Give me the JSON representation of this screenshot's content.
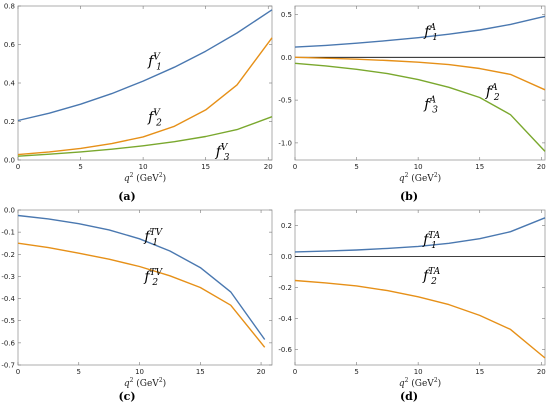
{
  "colors": {
    "blue": "#4a78b0",
    "orange": "#e69018",
    "green": "#7aa82e",
    "frame": "#999999"
  },
  "chart_data": [
    {
      "type": "line",
      "panel": "a",
      "caption": "(a)",
      "xlabel_main": "q",
      "xlabel_sup": "2",
      "xlabel_units": " (GeV",
      "xlabel_units_sup": "2",
      "xlabel_units_end": ")",
      "xlim": [
        0,
        20.3
      ],
      "ylim": [
        0,
        0.8
      ],
      "xticks": [
        0,
        5,
        10,
        15,
        20
      ],
      "yticks": [
        0.0,
        0.2,
        0.4,
        0.6,
        0.8
      ],
      "ytick_labels": [
        "0.0",
        "0.2",
        "0.4",
        "0.6",
        "0.8"
      ],
      "zero_line": false,
      "series": [
        {
          "name": "f",
          "sup": "V",
          "sub": "1",
          "color_key": "blue",
          "label_at": [
            10.4,
            0.49
          ],
          "x": [
            0,
            2.5,
            5,
            7.5,
            10,
            12.5,
            15,
            17.5,
            20.3
          ],
          "y": [
            0.205,
            0.243,
            0.29,
            0.345,
            0.41,
            0.482,
            0.565,
            0.66,
            0.78
          ]
        },
        {
          "name": "f",
          "sup": "V",
          "sub": "2",
          "color_key": "orange",
          "label_at": [
            10.4,
            0.2
          ],
          "x": [
            0,
            2.5,
            5,
            7.5,
            10,
            12.5,
            15,
            17.5,
            20.3
          ],
          "y": [
            0.028,
            0.042,
            0.06,
            0.085,
            0.12,
            0.175,
            0.26,
            0.39,
            0.635
          ]
        },
        {
          "name": "f",
          "sup": "V",
          "sub": "3",
          "color_key": "green",
          "label_at": [
            15.8,
            0.02
          ],
          "x": [
            0,
            2.5,
            5,
            7.5,
            10,
            12.5,
            15,
            17.5,
            20.3
          ],
          "y": [
            0.02,
            0.03,
            0.042,
            0.056,
            0.074,
            0.095,
            0.122,
            0.158,
            0.225
          ]
        }
      ]
    },
    {
      "type": "line",
      "panel": "b",
      "caption": "(b)",
      "xlabel_main": "q",
      "xlabel_sup": "2",
      "xlabel_units": " (GeV",
      "xlabel_units_sup": "2",
      "xlabel_units_end": ")",
      "xlim": [
        0,
        20.3
      ],
      "ylim": [
        -1.2,
        0.6
      ],
      "xticks": [
        0,
        5,
        10,
        15,
        20
      ],
      "yticks": [
        -1.0,
        -0.5,
        0.0,
        0.5
      ],
      "ytick_labels": [
        "-1.0",
        "-0.5",
        "0.0",
        "0.5"
      ],
      "zero_line": true,
      "series": [
        {
          "name": "f",
          "sup": "A",
          "sub": "1",
          "color_key": "blue",
          "label_at": [
            10.5,
            0.25
          ],
          "x": [
            0,
            2.5,
            5,
            7.5,
            10,
            12.5,
            15,
            17.5,
            20.3
          ],
          "y": [
            0.12,
            0.14,
            0.165,
            0.195,
            0.23,
            0.27,
            0.32,
            0.385,
            0.48
          ]
        },
        {
          "name": "f",
          "sup": "A",
          "sub": "2",
          "color_key": "orange",
          "label_at": [
            15.5,
            -0.45
          ],
          "x": [
            0,
            2.5,
            5,
            7.5,
            10,
            12.5,
            15,
            17.5,
            20.3
          ],
          "y": [
            0.0,
            -0.01,
            -0.022,
            -0.037,
            -0.057,
            -0.085,
            -0.13,
            -0.2,
            -0.38
          ]
        },
        {
          "name": "f",
          "sup": "A",
          "sub": "3",
          "color_key": "green",
          "label_at": [
            10.5,
            -0.6
          ],
          "x": [
            0,
            2.5,
            5,
            7.5,
            10,
            12.5,
            15,
            17.5,
            20.3
          ],
          "y": [
            -0.07,
            -0.1,
            -0.14,
            -0.19,
            -0.26,
            -0.35,
            -0.47,
            -0.67,
            -1.1
          ]
        }
      ]
    },
    {
      "type": "line",
      "panel": "c",
      "caption": "(c)",
      "xlabel_main": "q",
      "xlabel_sup": "2",
      "xlabel_units": " (GeV",
      "xlabel_units_sup": "2",
      "xlabel_units_end": ")",
      "xlim": [
        0,
        20.9
      ],
      "ylim": [
        -0.7,
        0.0
      ],
      "xticks": [
        0,
        5,
        10,
        15,
        20
      ],
      "yticks": [
        0.0,
        -0.1,
        -0.2,
        -0.3,
        -0.4,
        -0.5,
        -0.6,
        -0.7
      ],
      "ytick_labels": [
        "0.0",
        "-0.1",
        "-0.2",
        "-0.3",
        "-0.4",
        "-0.5",
        "-0.6",
        "-0.7"
      ],
      "zero_line": false,
      "series": [
        {
          "name": "f",
          "sup": "TV",
          "sub": "1",
          "color_key": "blue",
          "label_at": [
            10.4,
            -0.14
          ],
          "x": [
            0,
            2.5,
            5,
            7.5,
            10,
            12.5,
            15,
            17.5,
            20.3
          ],
          "y": [
            -0.025,
            -0.04,
            -0.062,
            -0.09,
            -0.13,
            -0.185,
            -0.26,
            -0.37,
            -0.585
          ]
        },
        {
          "name": "f",
          "sup": "TV",
          "sub": "2",
          "color_key": "orange",
          "label_at": [
            10.4,
            -0.32
          ],
          "x": [
            0,
            2.5,
            5,
            7.5,
            10,
            12.5,
            15,
            17.5,
            20.3
          ],
          "y": [
            -0.15,
            -0.17,
            -0.195,
            -0.222,
            -0.255,
            -0.297,
            -0.35,
            -0.43,
            -0.62
          ]
        }
      ]
    },
    {
      "type": "line",
      "panel": "d",
      "caption": "(d)",
      "xlabel_main": "q",
      "xlabel_sup": "2",
      "xlabel_units": " (GeV",
      "xlabel_units_sup": "2",
      "xlabel_units_end": ")",
      "xlim": [
        0,
        20.3
      ],
      "ylim": [
        -0.7,
        0.3
      ],
      "xticks": [
        0,
        5,
        10,
        15,
        20
      ],
      "yticks": [
        0.2,
        0.0,
        -0.2,
        -0.4,
        -0.6
      ],
      "ytick_labels": [
        "0.2",
        "0.0",
        "-0.2",
        "-0.4",
        "-0.6"
      ],
      "zero_line": true,
      "series": [
        {
          "name": "f",
          "sup": "TA",
          "sub": "1",
          "color_key": "blue",
          "label_at": [
            10.4,
            0.08
          ],
          "x": [
            0,
            2.5,
            5,
            7.5,
            10,
            12.5,
            15,
            17.5,
            20.3
          ],
          "y": [
            0.03,
            0.035,
            0.042,
            0.052,
            0.065,
            0.085,
            0.115,
            0.16,
            0.25
          ]
        },
        {
          "name": "f",
          "sup": "TA",
          "sub": "2",
          "color_key": "orange",
          "label_at": [
            10.4,
            -0.15
          ],
          "x": [
            0,
            2.5,
            5,
            7.5,
            10,
            12.5,
            15,
            17.5,
            20.3
          ],
          "y": [
            -0.155,
            -0.17,
            -0.19,
            -0.22,
            -0.26,
            -0.31,
            -0.38,
            -0.47,
            -0.655
          ]
        }
      ]
    }
  ]
}
